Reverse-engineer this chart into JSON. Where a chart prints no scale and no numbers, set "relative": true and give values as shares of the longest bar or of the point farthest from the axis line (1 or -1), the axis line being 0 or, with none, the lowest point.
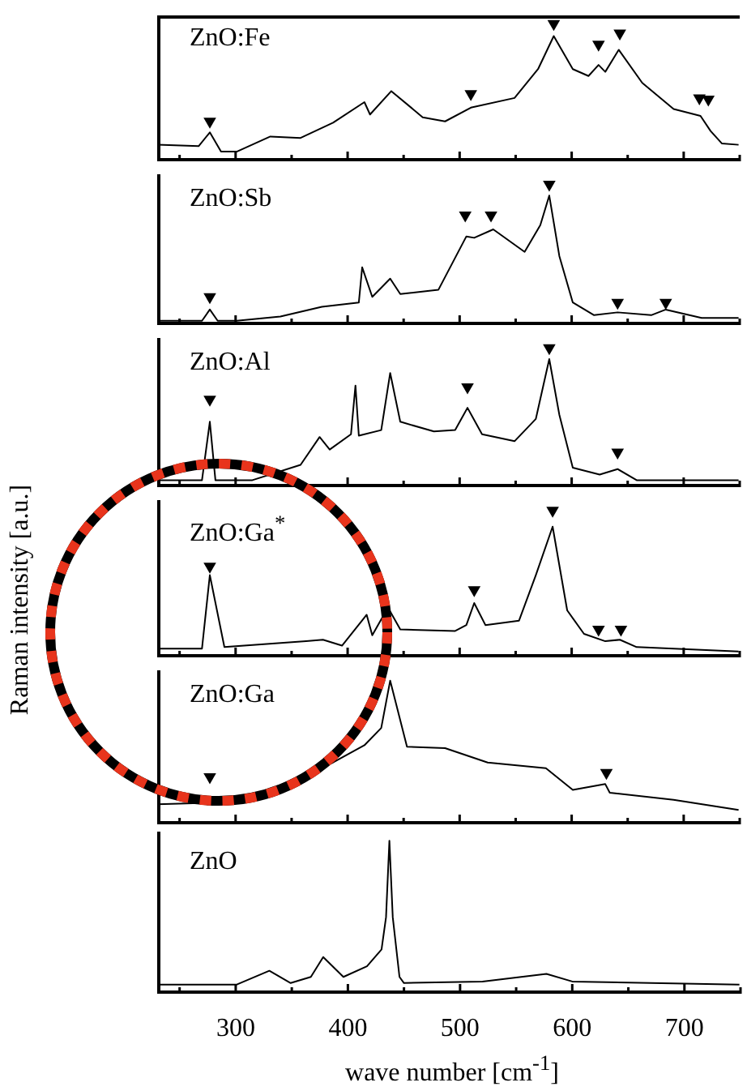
{
  "chart_data": [
    {
      "type": "line",
      "title": "ZnO:Fe",
      "relative": true,
      "legend": false,
      "tick_labels": false,
      "xlim": [
        230,
        750
      ],
      "xticks": [
        {
          "value": 250,
          "label": null
        },
        {
          "value": 300,
          "label": null
        },
        {
          "value": 350,
          "label": null
        },
        {
          "value": 400,
          "label": null
        },
        {
          "value": 450,
          "label": null
        },
        {
          "value": 500,
          "label": null
        },
        {
          "value": 550,
          "label": null
        },
        {
          "value": 600,
          "label": null
        },
        {
          "value": 650,
          "label": null
        },
        {
          "value": 700,
          "label": null
        },
        {
          "value": 750,
          "label": null
        }
      ],
      "series": [
        {
          "type": "line",
          "color": "#000000",
          "marker": "none",
          "x": [
            230,
            267,
            277,
            287,
            301,
            331,
            358,
            387,
            415,
            420,
            439,
            467,
            487,
            510,
            549,
            570,
            584,
            601,
            615,
            624,
            630,
            642,
            663,
            691,
            715,
            724,
            734,
            749
          ],
          "values": [
            0.12,
            0.11,
            0.21,
            0.07,
            0.07,
            0.18,
            0.17,
            0.28,
            0.43,
            0.34,
            0.51,
            0.32,
            0.29,
            0.39,
            0.46,
            0.67,
            0.91,
            0.67,
            0.62,
            0.7,
            0.65,
            0.81,
            0.57,
            0.38,
            0.33,
            0.22,
            0.13,
            0.12
          ]
        },
        {
          "type": "scatter",
          "color": "#000000",
          "marker": "triangle",
          "x": [
            277,
            510,
            584,
            624,
            643,
            714,
            722
          ],
          "values": [
            0.29,
            0.49,
            1.0,
            0.85,
            0.93,
            0.46,
            0.45
          ]
        }
      ]
    },
    {
      "type": "line",
      "title": "ZnO:Sb",
      "relative": true,
      "legend": false,
      "tick_labels": false,
      "xlim": [
        230,
        750
      ],
      "xticks": [
        {
          "value": 250,
          "label": null
        },
        {
          "value": 300,
          "label": null
        },
        {
          "value": 350,
          "label": null
        },
        {
          "value": 400,
          "label": null
        },
        {
          "value": 450,
          "label": null
        },
        {
          "value": 500,
          "label": null
        },
        {
          "value": 550,
          "label": null
        },
        {
          "value": 600,
          "label": null
        },
        {
          "value": 650,
          "label": null
        },
        {
          "value": 700,
          "label": null
        },
        {
          "value": 750,
          "label": null
        }
      ],
      "series": [
        {
          "type": "line",
          "color": "#000000",
          "marker": "none",
          "x": [
            230,
            270,
            277,
            284,
            301,
            340,
            377,
            410,
            413,
            422,
            438,
            447,
            481,
            506,
            513,
            530,
            558,
            572,
            580,
            589,
            601,
            620,
            641,
            671,
            684,
            716,
            749
          ],
          "values": [
            0.03,
            0.03,
            0.11,
            0.03,
            0.03,
            0.06,
            0.13,
            0.16,
            0.41,
            0.2,
            0.33,
            0.22,
            0.25,
            0.63,
            0.62,
            0.68,
            0.52,
            0.71,
            0.92,
            0.49,
            0.16,
            0.07,
            0.09,
            0.07,
            0.11,
            0.05,
            0.05
          ]
        },
        {
          "type": "scatter",
          "color": "#000000",
          "marker": "triangle",
          "x": [
            277,
            505,
            528,
            580,
            641,
            684
          ],
          "values": [
            0.2,
            0.78,
            0.78,
            1.0,
            0.16,
            0.16
          ]
        }
      ]
    },
    {
      "type": "line",
      "title": "ZnO:Al",
      "relative": true,
      "legend": false,
      "tick_labels": false,
      "xlim": [
        230,
        750
      ],
      "xticks": [
        {
          "value": 250,
          "label": null
        },
        {
          "value": 300,
          "label": null
        },
        {
          "value": 350,
          "label": null
        },
        {
          "value": 400,
          "label": null
        },
        {
          "value": 450,
          "label": null
        },
        {
          "value": 500,
          "label": null
        },
        {
          "value": 550,
          "label": null
        },
        {
          "value": 600,
          "label": null
        },
        {
          "value": 650,
          "label": null
        },
        {
          "value": 700,
          "label": null
        },
        {
          "value": 750,
          "label": null
        }
      ],
      "series": [
        {
          "type": "line",
          "color": "#000000",
          "marker": "none",
          "x": [
            230,
            270,
            277,
            282,
            315,
            358,
            375,
            384,
            403,
            407,
            410,
            430,
            438,
            447,
            477,
            496,
            507,
            520,
            549,
            568,
            580,
            589,
            601,
            625,
            641,
            658,
            749
          ],
          "values": [
            0.05,
            0.05,
            0.47,
            0.05,
            0.05,
            0.16,
            0.36,
            0.27,
            0.38,
            0.73,
            0.37,
            0.41,
            0.82,
            0.47,
            0.4,
            0.41,
            0.57,
            0.38,
            0.33,
            0.49,
            0.92,
            0.52,
            0.14,
            0.09,
            0.13,
            0.05,
            0.05
          ]
        },
        {
          "type": "scatter",
          "color": "#000000",
          "marker": "triangle",
          "x": [
            277,
            507,
            580,
            641
          ],
          "values": [
            0.63,
            0.72,
            1.0,
            0.25
          ]
        }
      ]
    },
    {
      "type": "line",
      "title": "ZnO:Ga$^{*}$",
      "relative": true,
      "legend": false,
      "tick_labels": false,
      "xlim": [
        230,
        750
      ],
      "xticks": [
        {
          "value": 250,
          "label": null
        },
        {
          "value": 300,
          "label": null
        },
        {
          "value": 350,
          "label": null
        },
        {
          "value": 400,
          "label": null
        },
        {
          "value": 450,
          "label": null
        },
        {
          "value": 500,
          "label": null
        },
        {
          "value": 550,
          "label": null
        },
        {
          "value": 600,
          "label": null
        },
        {
          "value": 650,
          "label": null
        },
        {
          "value": 700,
          "label": null
        },
        {
          "value": 750,
          "label": null
        }
      ],
      "series": [
        {
          "type": "line",
          "color": "#000000",
          "marker": "none",
          "x": [
            230,
            270,
            277,
            290,
            363,
            378,
            395,
            417,
            422,
            436,
            447,
            496,
            506,
            513,
            523,
            553,
            568,
            583,
            596,
            611,
            630,
            643,
            658,
            749
          ],
          "values": [
            0.06,
            0.06,
            0.56,
            0.07,
            0.11,
            0.12,
            0.08,
            0.29,
            0.15,
            0.34,
            0.19,
            0.18,
            0.22,
            0.37,
            0.22,
            0.25,
            0.56,
            0.89,
            0.32,
            0.16,
            0.11,
            0.12,
            0.07,
            0.04
          ]
        },
        {
          "type": "scatter",
          "color": "#000000",
          "marker": "triangle",
          "x": [
            277,
            513,
            583,
            624,
            644
          ],
          "values": [
            0.62,
            0.46,
            1.0,
            0.19,
            0.19
          ]
        }
      ]
    },
    {
      "type": "line",
      "title": "ZnO:Ga",
      "relative": true,
      "legend": false,
      "tick_labels": false,
      "xlim": [
        230,
        750
      ],
      "xticks": [
        {
          "value": 250,
          "label": null
        },
        {
          "value": 300,
          "label": null
        },
        {
          "value": 350,
          "label": null
        },
        {
          "value": 400,
          "label": null
        },
        {
          "value": 450,
          "label": null
        },
        {
          "value": 500,
          "label": null
        },
        {
          "value": 550,
          "label": null
        },
        {
          "value": 600,
          "label": null
        },
        {
          "value": 650,
          "label": null
        },
        {
          "value": 700,
          "label": null
        },
        {
          "value": 750,
          "label": null
        }
      ],
      "series": [
        {
          "type": "line",
          "color": "#000000",
          "marker": "none",
          "x": [
            230,
            277,
            315,
            387,
            415,
            430,
            438,
            453,
            487,
            525,
            577,
            601,
            630,
            634,
            691,
            749
          ],
          "values": [
            0.14,
            0.15,
            0.19,
            0.43,
            0.55,
            0.67,
            1.0,
            0.54,
            0.53,
            0.43,
            0.39,
            0.24,
            0.28,
            0.22,
            0.17,
            0.1
          ]
        },
        {
          "type": "scatter",
          "color": "#000000",
          "marker": "triangle",
          "x": [
            277,
            631
          ],
          "values": [
            0.33,
            0.36
          ]
        }
      ]
    },
    {
      "type": "line",
      "title": "ZnO",
      "relative": true,
      "legend": false,
      "tick_labels": "x",
      "xlabel": "wave number [cm$^{-1}$]",
      "ylabel": "Raman intensity [a.u.]",
      "xlim": [
        230,
        750
      ],
      "xticks": [
        {
          "value": 250,
          "label": null
        },
        300,
        {
          "value": 350,
          "label": null
        },
        400,
        {
          "value": 450,
          "label": null
        },
        500,
        {
          "value": 550,
          "label": null
        },
        600,
        {
          "value": 650,
          "label": null
        },
        700,
        {
          "value": 750,
          "label": null
        }
      ],
      "series": [
        {
          "type": "line",
          "color": "#000000",
          "marker": "none",
          "x": [
            230,
            301,
            330,
            349,
            367,
            378,
            396,
            417,
            430,
            434,
            437,
            440,
            446,
            450,
            520,
            577,
            600,
            749
          ],
          "values": [
            0.06,
            0.06,
            0.15,
            0.07,
            0.11,
            0.24,
            0.11,
            0.18,
            0.29,
            0.5,
            1.0,
            0.5,
            0.11,
            0.07,
            0.08,
            0.13,
            0.08,
            0.06
          ]
        }
      ]
    }
  ]
}
